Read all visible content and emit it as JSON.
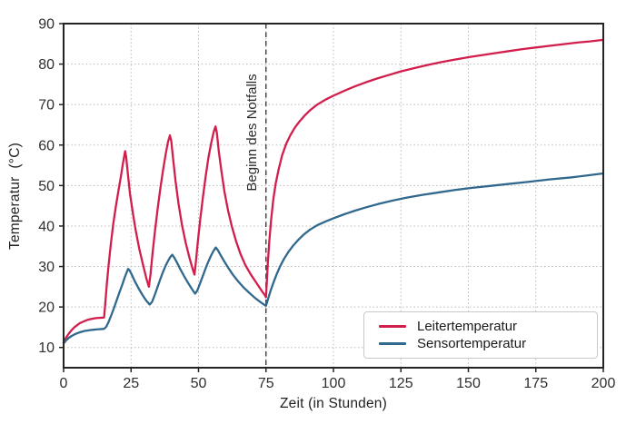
{
  "chart_data": {
    "type": "line",
    "title": "",
    "xlabel": "Zeit (in Stunden)",
    "ylabel": "Temperatur  (°C)",
    "xlim": [
      0,
      200
    ],
    "ylim": [
      5,
      90
    ],
    "xticks": [
      0,
      25,
      50,
      75,
      100,
      125,
      150,
      175,
      200
    ],
    "yticks": [
      10,
      20,
      30,
      40,
      50,
      60,
      70,
      80,
      90
    ],
    "grid": "dotted",
    "grid_color": "#b9b9b9",
    "axis_color": "#242424",
    "tick_label_color": "#2e2e2e",
    "legend": {
      "position": "lower-right",
      "border_color": "#c9c9c9"
    },
    "annotation": {
      "text": "Beginn des Notfalls",
      "x": 75,
      "line_style": "dashed",
      "line_color": "#3c3c3c"
    },
    "series": [
      {
        "name": "Leitertemperatur",
        "color": "#d21e4d",
        "points": [
          [
            0,
            11.2
          ],
          [
            0.5,
            11.9
          ],
          [
            1,
            12.5
          ],
          [
            1.5,
            13.0
          ],
          [
            2,
            13.5
          ],
          [
            3,
            14.3
          ],
          [
            4,
            15.0
          ],
          [
            5,
            15.5
          ],
          [
            6,
            16.0
          ],
          [
            7,
            16.3
          ],
          [
            8,
            16.6
          ],
          [
            9,
            16.85
          ],
          [
            10,
            17.0
          ],
          [
            11,
            17.15
          ],
          [
            12,
            17.25
          ],
          [
            13,
            17.3
          ],
          [
            14,
            17.35
          ],
          [
            15,
            17.4
          ],
          [
            15.4,
            20.5
          ],
          [
            16,
            25.5
          ],
          [
            16.7,
            30.5
          ],
          [
            17.5,
            35.5
          ],
          [
            18.4,
            40.5
          ],
          [
            19.4,
            45
          ],
          [
            20.4,
            49
          ],
          [
            21.3,
            52.5
          ],
          [
            22,
            55.5
          ],
          [
            22.8,
            58.5
          ],
          [
            23.2,
            57
          ],
          [
            23.8,
            53
          ],
          [
            24.6,
            48
          ],
          [
            25.6,
            43.5
          ],
          [
            26.7,
            39
          ],
          [
            28,
            34.5
          ],
          [
            29.4,
            30.5
          ],
          [
            30.7,
            27
          ],
          [
            31.6,
            25
          ],
          [
            32.2,
            28
          ],
          [
            33,
            33.5
          ],
          [
            33.9,
            39
          ],
          [
            34.9,
            44.5
          ],
          [
            35.9,
            49.5
          ],
          [
            36.9,
            54
          ],
          [
            37.9,
            58
          ],
          [
            38.7,
            60.8
          ],
          [
            39.4,
            62.4
          ],
          [
            39.9,
            61
          ],
          [
            40.6,
            56.5
          ],
          [
            41.5,
            51
          ],
          [
            42.6,
            45.5
          ],
          [
            43.8,
            40.5
          ],
          [
            45.2,
            36
          ],
          [
            46.7,
            32
          ],
          [
            48,
            29
          ],
          [
            48.5,
            28
          ],
          [
            49,
            31
          ],
          [
            49.8,
            36.5
          ],
          [
            50.7,
            42
          ],
          [
            51.7,
            47.5
          ],
          [
            52.7,
            52.5
          ],
          [
            53.7,
            57
          ],
          [
            54.7,
            60.5
          ],
          [
            55.6,
            63.2
          ],
          [
            56.3,
            64.6
          ],
          [
            56.8,
            63
          ],
          [
            57.5,
            58.5
          ],
          [
            58.5,
            53.5
          ],
          [
            59.6,
            48.5
          ],
          [
            60.9,
            44
          ],
          [
            62.3,
            40
          ],
          [
            63.9,
            36.3
          ],
          [
            65.6,
            33
          ],
          [
            67.4,
            30.3
          ],
          [
            69.4,
            28
          ],
          [
            71.4,
            26
          ],
          [
            73.2,
            24.2
          ],
          [
            74.5,
            23
          ],
          [
            75,
            22.4
          ],
          [
            75.3,
            26
          ],
          [
            75.7,
            31
          ],
          [
            76.2,
            36
          ],
          [
            76.9,
            41.5
          ],
          [
            77.7,
            46.5
          ],
          [
            78.6,
            50.5
          ],
          [
            79.7,
            54
          ],
          [
            81,
            57.5
          ],
          [
            82.5,
            60.3
          ],
          [
            84,
            62.4
          ],
          [
            85.7,
            64.3
          ],
          [
            87.5,
            65.9
          ],
          [
            89.5,
            67.4
          ],
          [
            91.5,
            68.7
          ],
          [
            94,
            70
          ],
          [
            97,
            71.2
          ],
          [
            100,
            72.2
          ],
          [
            104,
            73.4
          ],
          [
            108,
            74.5
          ],
          [
            112,
            75.5
          ],
          [
            116,
            76.4
          ],
          [
            120,
            77.2
          ],
          [
            125,
            78.2
          ],
          [
            130,
            79
          ],
          [
            135,
            79.8
          ],
          [
            140,
            80.5
          ],
          [
            145,
            81.1
          ],
          [
            150,
            81.7
          ],
          [
            155,
            82.2
          ],
          [
            160,
            82.7
          ],
          [
            165,
            83.2
          ],
          [
            170,
            83.7
          ],
          [
            175,
            84.1
          ],
          [
            180,
            84.5
          ],
          [
            185,
            84.9
          ],
          [
            190,
            85.3
          ],
          [
            195,
            85.6
          ],
          [
            200,
            86
          ]
        ]
      },
      {
        "name": "Sensortemperatur",
        "color": "#31688e",
        "points": [
          [
            0,
            11
          ],
          [
            0.5,
            11.4
          ],
          [
            1,
            11.8
          ],
          [
            2,
            12.4
          ],
          [
            3,
            12.85
          ],
          [
            4,
            13.2
          ],
          [
            5,
            13.5
          ],
          [
            6,
            13.75
          ],
          [
            7,
            13.95
          ],
          [
            8,
            14.1
          ],
          [
            9,
            14.2
          ],
          [
            10,
            14.3
          ],
          [
            11,
            14.38
          ],
          [
            12,
            14.44
          ],
          [
            13,
            14.5
          ],
          [
            14,
            14.55
          ],
          [
            15,
            14.6
          ],
          [
            15.8,
            15.1
          ],
          [
            16.8,
            16.5
          ],
          [
            17.8,
            18.2
          ],
          [
            18.8,
            20
          ],
          [
            19.8,
            21.9
          ],
          [
            20.8,
            23.8
          ],
          [
            21.8,
            25.6
          ],
          [
            22.6,
            27.2
          ],
          [
            23.4,
            28.6
          ],
          [
            23.9,
            29.4
          ],
          [
            24.5,
            29
          ],
          [
            25.4,
            27.8
          ],
          [
            26.5,
            26.2
          ],
          [
            27.8,
            24.6
          ],
          [
            29.2,
            23
          ],
          [
            30.6,
            21.6
          ],
          [
            31.9,
            20.6
          ],
          [
            32.8,
            21.3
          ],
          [
            33.8,
            23
          ],
          [
            34.8,
            24.9
          ],
          [
            35.8,
            26.8
          ],
          [
            36.8,
            28.6
          ],
          [
            37.8,
            30.2
          ],
          [
            38.8,
            31.5
          ],
          [
            39.7,
            32.5
          ],
          [
            40.3,
            32.9
          ],
          [
            41,
            32.2
          ],
          [
            42,
            31
          ],
          [
            43.2,
            29.4
          ],
          [
            44.6,
            27.7
          ],
          [
            46,
            26.1
          ],
          [
            47.4,
            24.6
          ],
          [
            48.7,
            23.3
          ],
          [
            49.5,
            24
          ],
          [
            50.5,
            25.7
          ],
          [
            51.5,
            27.5
          ],
          [
            52.5,
            29.3
          ],
          [
            53.5,
            31
          ],
          [
            54.5,
            32.5
          ],
          [
            55.5,
            33.8
          ],
          [
            56.4,
            34.7
          ],
          [
            57.2,
            34
          ],
          [
            58.2,
            32.8
          ],
          [
            59.5,
            31.3
          ],
          [
            61,
            29.7
          ],
          [
            62.7,
            28
          ],
          [
            64.6,
            26.4
          ],
          [
            66.6,
            24.9
          ],
          [
            68.8,
            23.5
          ],
          [
            71,
            22.2
          ],
          [
            73,
            21.2
          ],
          [
            74.5,
            20.5
          ],
          [
            75,
            20.3
          ],
          [
            75.7,
            21.8
          ],
          [
            76.6,
            23.8
          ],
          [
            77.7,
            25.9
          ],
          [
            78.9,
            28
          ],
          [
            80.2,
            30
          ],
          [
            81.7,
            31.9
          ],
          [
            83.3,
            33.6
          ],
          [
            85,
            35.1
          ],
          [
            87,
            36.6
          ],
          [
            89,
            37.9
          ],
          [
            91.3,
            39.1
          ],
          [
            94,
            40.2
          ],
          [
            97,
            41.1
          ],
          [
            100,
            41.9
          ],
          [
            104,
            42.9
          ],
          [
            108,
            43.8
          ],
          [
            112,
            44.6
          ],
          [
            117,
            45.5
          ],
          [
            122,
            46.3
          ],
          [
            127,
            47
          ],
          [
            133,
            47.7
          ],
          [
            139,
            48.3
          ],
          [
            145,
            48.9
          ],
          [
            151,
            49.4
          ],
          [
            158,
            49.9
          ],
          [
            165,
            50.4
          ],
          [
            172,
            50.9
          ],
          [
            180,
            51.5
          ],
          [
            188,
            52
          ],
          [
            194,
            52.5
          ],
          [
            200,
            53
          ]
        ]
      }
    ]
  }
}
